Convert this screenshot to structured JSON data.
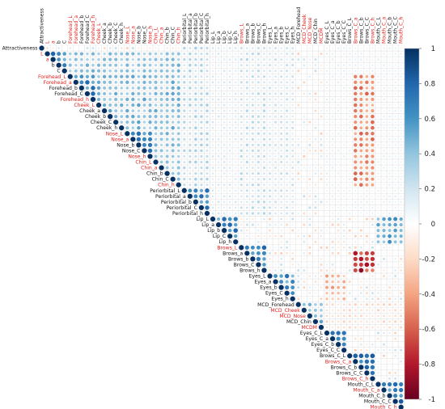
{
  "chart_data": {
    "type": "heatmap",
    "variables": [
      {
        "name": "Attractiveness",
        "red": false
      },
      {
        "name": "L",
        "red": true
      },
      {
        "name": "a",
        "red": true
      },
      {
        "name": "b",
        "red": false
      },
      {
        "name": "C",
        "red": false
      },
      {
        "name": "Forehead_L",
        "red": true
      },
      {
        "name": "Forehead_a",
        "red": true
      },
      {
        "name": "Forehead_b",
        "red": false
      },
      {
        "name": "Forehead_C",
        "red": false
      },
      {
        "name": "Forehead_h",
        "red": true
      },
      {
        "name": "Cheek_L",
        "red": true
      },
      {
        "name": "Cheek_a",
        "red": false
      },
      {
        "name": "Cheek_b",
        "red": false
      },
      {
        "name": "Cheek_C",
        "red": false
      },
      {
        "name": "Cheek_h",
        "red": false
      },
      {
        "name": "Nose_L",
        "red": true
      },
      {
        "name": "Nose_a",
        "red": true
      },
      {
        "name": "Nose_b",
        "red": false
      },
      {
        "name": "Nose_C",
        "red": false
      },
      {
        "name": "Nose_h",
        "red": true
      },
      {
        "name": "Chin_L",
        "red": true
      },
      {
        "name": "Chin_a",
        "red": true
      },
      {
        "name": "Chin_b",
        "red": false
      },
      {
        "name": "Chin_C",
        "red": false
      },
      {
        "name": "Chin_h",
        "red": true
      },
      {
        "name": "Periorbital_L",
        "red": false
      },
      {
        "name": "Periorbital_a",
        "red": false
      },
      {
        "name": "Periorbital_b",
        "red": false
      },
      {
        "name": "Periorbital_C",
        "red": false
      },
      {
        "name": "Periorbital_h",
        "red": false
      },
      {
        "name": "Lip_L",
        "red": false
      },
      {
        "name": "Lip_a",
        "red": false
      },
      {
        "name": "Lip_b",
        "red": false
      },
      {
        "name": "Lip_C",
        "red": false
      },
      {
        "name": "Lip_h",
        "red": false
      },
      {
        "name": "Brows_L",
        "red": true
      },
      {
        "name": "Brows_a",
        "red": false
      },
      {
        "name": "Brows_b",
        "red": false
      },
      {
        "name": "Brows_C",
        "red": false
      },
      {
        "name": "Brows_h",
        "red": false
      },
      {
        "name": "Eyes_L",
        "red": false
      },
      {
        "name": "Eyes_a",
        "red": false
      },
      {
        "name": "Eyes_b",
        "red": false
      },
      {
        "name": "Eyes_C",
        "red": false
      },
      {
        "name": "Eyes_h",
        "red": false
      },
      {
        "name": "MCD_Forehead",
        "red": false
      },
      {
        "name": "MCD_Cheek",
        "red": true
      },
      {
        "name": "MCD_Nose",
        "red": true
      },
      {
        "name": "MCD_Chin",
        "red": false
      },
      {
        "name": "MCDM",
        "red": true
      },
      {
        "name": "Eyes_C_L",
        "red": false
      },
      {
        "name": "Eyes_C_a",
        "red": false
      },
      {
        "name": "Eyes_C_b",
        "red": false
      },
      {
        "name": "Eyes_C_C",
        "red": false
      },
      {
        "name": "Brows_C_L",
        "red": false
      },
      {
        "name": "Brows_C_a",
        "red": true
      },
      {
        "name": "Brows_C_b",
        "red": false
      },
      {
        "name": "Brows_C_C",
        "red": false
      },
      {
        "name": "Brows_C_h",
        "red": true
      },
      {
        "name": "Mouth_C_L",
        "red": false
      },
      {
        "name": "Mouth_C_a",
        "red": true
      },
      {
        "name": "Mouth_C_b",
        "red": false
      },
      {
        "name": "Mouth_C_C",
        "red": false
      },
      {
        "name": "Mouth_C_h",
        "red": true
      }
    ],
    "correlations_note": "",
    "blocks": [
      {
        "rows": [
          1,
          4
        ],
        "cols": [
          1,
          4
        ],
        "r": 0.85
      },
      {
        "rows": [
          5,
          9
        ],
        "cols": [
          5,
          9
        ],
        "r": 0.8
      },
      {
        "rows": [
          10,
          14
        ],
        "cols": [
          10,
          14
        ],
        "r": 0.82
      },
      {
        "rows": [
          15,
          19
        ],
        "cols": [
          15,
          19
        ],
        "r": 0.8
      },
      {
        "rows": [
          20,
          24
        ],
        "cols": [
          20,
          24
        ],
        "r": 0.8
      },
      {
        "rows": [
          25,
          29
        ],
        "cols": [
          25,
          29
        ],
        "r": 0.85
      },
      {
        "rows": [
          30,
          34
        ],
        "cols": [
          30,
          34
        ],
        "r": 0.8
      },
      {
        "rows": [
          35,
          39
        ],
        "cols": [
          35,
          39
        ],
        "r": 0.85
      },
      {
        "rows": [
          40,
          44
        ],
        "cols": [
          40,
          44
        ],
        "r": 0.78
      },
      {
        "rows": [
          45,
          49
        ],
        "cols": [
          45,
          49
        ],
        "r": 0.55
      },
      {
        "rows": [
          50,
          53
        ],
        "cols": [
          50,
          53
        ],
        "r": 0.8
      },
      {
        "rows": [
          54,
          58
        ],
        "cols": [
          54,
          58
        ],
        "r": 0.85
      },
      {
        "rows": [
          59,
          63
        ],
        "cols": [
          59,
          63
        ],
        "r": 0.85
      },
      {
        "rows": [
          1,
          4
        ],
        "cols": [
          5,
          24
        ],
        "r": 0.5
      },
      {
        "rows": [
          5,
          14
        ],
        "cols": [
          10,
          24
        ],
        "r": 0.55
      },
      {
        "rows": [
          15,
          24
        ],
        "cols": [
          20,
          24
        ],
        "r": 0.5
      },
      {
        "rows": [
          0,
          24
        ],
        "cols": [
          25,
          29
        ],
        "r": 0.35
      },
      {
        "rows": [
          0,
          29
        ],
        "cols": [
          30,
          34
        ],
        "r": 0.2
      },
      {
        "rows": [
          0,
          29
        ],
        "cols": [
          35,
          39
        ],
        "r": 0.3
      },
      {
        "rows": [
          0,
          29
        ],
        "cols": [
          40,
          44
        ],
        "r": 0.25
      },
      {
        "rows": [
          0,
          29
        ],
        "cols": [
          50,
          63
        ],
        "r": 0.15
      },
      {
        "rows": [
          5,
          24
        ],
        "cols": [
          55,
          58
        ],
        "r": -0.6
      },
      {
        "rows": [
          36,
          39
        ],
        "cols": [
          55,
          58
        ],
        "r": -0.9
      },
      {
        "rows": [
          30,
          34
        ],
        "cols": [
          59,
          63
        ],
        "r": 0.65
      },
      {
        "rows": [
          40,
          44
        ],
        "cols": [
          50,
          53
        ],
        "r": -0.45
      },
      {
        "rows": [
          45,
          49
        ],
        "cols": [
          50,
          63
        ],
        "r": -0.25
      }
    ],
    "diagonal": 1,
    "colorbar": {
      "min": -1,
      "max": 1,
      "ticks": [
        "1",
        "0.8",
        "0.6",
        "0.4",
        "0.2",
        "0",
        "-0.2",
        "-0.4",
        "-0.6",
        "-0.8",
        "-1"
      ],
      "colors": [
        "#053061",
        "#2166ac",
        "#4393c3",
        "#92c5de",
        "#d1e5f0",
        "#ffffff",
        "#fddbc7",
        "#f4a582",
        "#d6604d",
        "#b2182b",
        "#67001f"
      ]
    }
  }
}
